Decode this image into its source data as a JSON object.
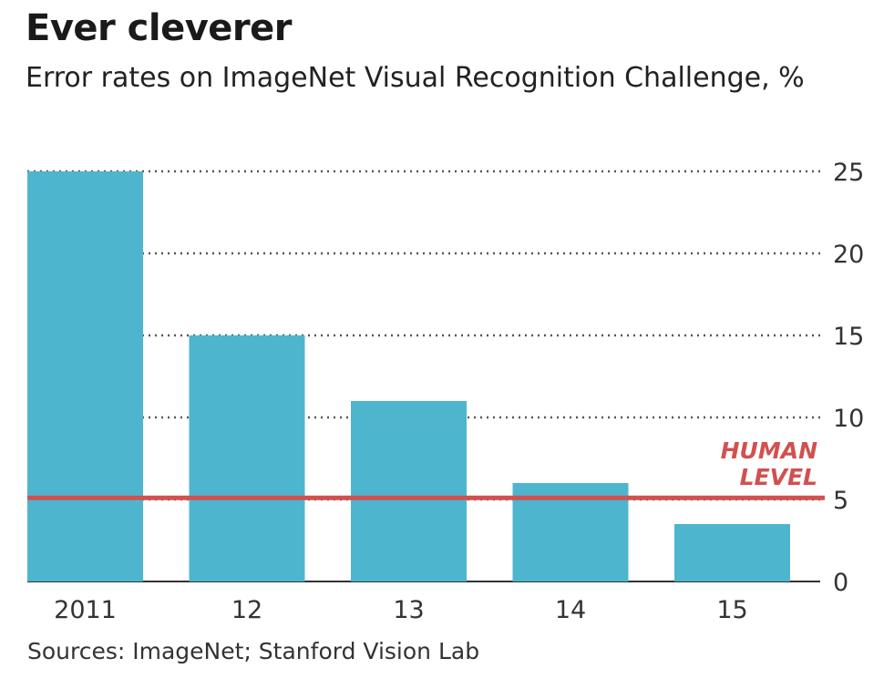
{
  "chart_data": {
    "type": "bar",
    "title": "Ever cleverer",
    "subtitle": "Error rates on ImageNet Visual Recognition Challenge, %",
    "categories": [
      "2011",
      "12",
      "13",
      "14",
      "15"
    ],
    "values": [
      25,
      15,
      11,
      6,
      3.5
    ],
    "ylim": [
      0,
      25
    ],
    "yticks": [
      0,
      5,
      10,
      15,
      20,
      25
    ],
    "y_axis_side": "right",
    "grid": "dotted horizontal",
    "reference_line": {
      "label_line1": "HUMAN",
      "label_line2": "LEVEL",
      "value": 5.1
    },
    "source": "Sources: ImageNet; Stanford Vision Lab",
    "colors": {
      "bar": "#4db6ce",
      "reference": "#d2504f",
      "grid": "#555555"
    }
  }
}
